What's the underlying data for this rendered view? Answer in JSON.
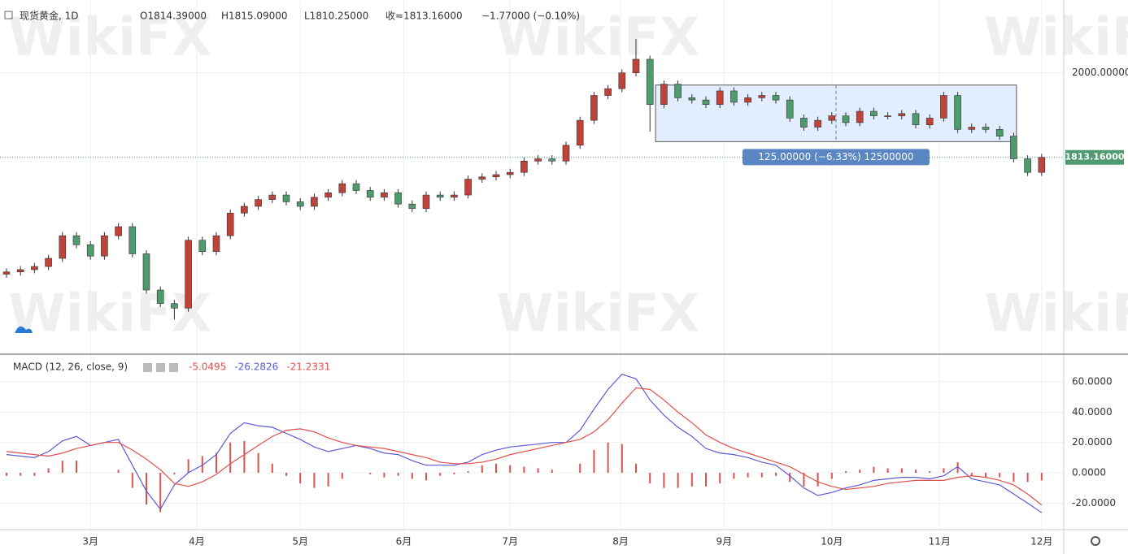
{
  "header": {
    "symbol": "现货黄金, 1D",
    "open": "O1814.39000",
    "high": "H1815.09000",
    "low": "L1810.25000",
    "close": "收=1813.16000",
    "change": "−1.77000 (−0.10%)"
  },
  "watermark": "WikiFX",
  "chart_data": [
    {
      "type": "candlestick",
      "up_color": "#c0433b",
      "down_color": "#4f9a6e",
      "open": [
        1555,
        1560,
        1565,
        1572,
        1590,
        1640,
        1620,
        1595,
        1640,
        1660,
        1600,
        1520,
        1490,
        1480,
        1630,
        1605,
        1640,
        1690,
        1705,
        1720,
        1730,
        1715,
        1705,
        1725,
        1735,
        1755,
        1740,
        1725,
        1735,
        1710,
        1700,
        1730,
        1725,
        1730,
        1765,
        1770,
        1775,
        1780,
        1805,
        1810,
        1805,
        1840,
        1895,
        1950,
        1965,
        2000,
        2030,
        1930,
        1975,
        1945,
        1940,
        1930,
        1960,
        1935,
        1945,
        1950,
        1940,
        1900,
        1880,
        1895,
        1905,
        1890,
        1915,
        1905,
        1905,
        1910,
        1885,
        1900,
        1950,
        1875,
        1880,
        1875,
        1860,
        1810,
        1780
      ],
      "high": [
        1568,
        1573,
        1580,
        1598,
        1648,
        1648,
        1628,
        1648,
        1668,
        1668,
        1608,
        1528,
        1498,
        1638,
        1638,
        1648,
        1698,
        1713,
        1728,
        1738,
        1738,
        1723,
        1733,
        1743,
        1763,
        1763,
        1748,
        1743,
        1743,
        1718,
        1738,
        1738,
        1738,
        1773,
        1778,
        1783,
        1788,
        1813,
        1818,
        1818,
        1848,
        1903,
        1958,
        1973,
        2008,
        2075,
        2038,
        1983,
        1983,
        1953,
        1948,
        1968,
        1968,
        1953,
        1958,
        1958,
        1948,
        1908,
        1903,
        1913,
        1913,
        1923,
        1923,
        1913,
        1918,
        1918,
        1908,
        1958,
        1958,
        1888,
        1888,
        1883,
        1868,
        1818,
        1821
      ],
      "low": [
        1547,
        1552,
        1557,
        1564,
        1582,
        1612,
        1587,
        1587,
        1632,
        1592,
        1512,
        1482,
        1455,
        1472,
        1597,
        1597,
        1632,
        1682,
        1697,
        1712,
        1707,
        1697,
        1697,
        1717,
        1727,
        1732,
        1717,
        1717,
        1702,
        1692,
        1692,
        1717,
        1717,
        1722,
        1757,
        1762,
        1767,
        1772,
        1797,
        1797,
        1797,
        1832,
        1887,
        1942,
        1957,
        1992,
        1870,
        1922,
        1937,
        1932,
        1922,
        1922,
        1927,
        1927,
        1937,
        1932,
        1892,
        1872,
        1872,
        1887,
        1882,
        1882,
        1897,
        1897,
        1897,
        1877,
        1877,
        1892,
        1867,
        1867,
        1867,
        1852,
        1802,
        1772,
        1772
      ],
      "close": [
        1560,
        1565,
        1572,
        1590,
        1640,
        1620,
        1595,
        1640,
        1660,
        1600,
        1520,
        1490,
        1480,
        1630,
        1605,
        1640,
        1690,
        1705,
        1720,
        1730,
        1715,
        1705,
        1725,
        1735,
        1755,
        1740,
        1725,
        1735,
        1710,
        1700,
        1730,
        1725,
        1730,
        1765,
        1770,
        1775,
        1780,
        1805,
        1810,
        1805,
        1840,
        1895,
        1950,
        1965,
        2000,
        2030,
        1930,
        1975,
        1945,
        1940,
        1930,
        1960,
        1935,
        1945,
        1950,
        1940,
        1900,
        1880,
        1895,
        1905,
        1890,
        1915,
        1905,
        1905,
        1910,
        1885,
        1900,
        1950,
        1875,
        1880,
        1875,
        1860,
        1810,
        1780,
        1813.16
      ],
      "ylim": [
        1380,
        2161
      ],
      "yticks": [
        {
          "value": 2000,
          "label": "2000.00000"
        }
      ],
      "last_price": {
        "value": 1813.16,
        "label": "1813.16000",
        "color": "#4f9a6e"
      },
      "xlim": [
        -0.5,
        76.5
      ],
      "xticks": [
        {
          "value": 6,
          "label": "3月"
        },
        {
          "value": 13.6,
          "label": "4月"
        },
        {
          "value": 21,
          "label": "5月"
        },
        {
          "value": 28.4,
          "label": "6月"
        },
        {
          "value": 36,
          "label": "7月"
        },
        {
          "value": 43.9,
          "label": "8月"
        },
        {
          "value": 51.3,
          "label": "9月"
        },
        {
          "value": 59,
          "label": "10月"
        },
        {
          "value": 66.7,
          "label": "11月"
        },
        {
          "value": 74,
          "label": "12月"
        }
      ],
      "box": {
        "x": [
          46.4,
          72.2
        ],
        "y": [
          1973,
          1848
        ],
        "label": "125.00000 (−6.33%) 12500000"
      }
    },
    {
      "type": "macd",
      "title": "MACD (12, 26, close, 9)",
      "series": [
        {
          "name": "-5.0495",
          "kind": "histogram",
          "color": "#d9534f",
          "values": [
            -2,
            -2,
            -2,
            3,
            8,
            8,
            0,
            0,
            2,
            -10,
            -21,
            -26,
            -1,
            9,
            11,
            13,
            20,
            21,
            13,
            6,
            -2,
            -7,
            -10,
            -9,
            -4,
            0,
            -1,
            -3,
            -2,
            -4,
            -5,
            -2,
            -1,
            1,
            5,
            6,
            5,
            4,
            3,
            2,
            0,
            6,
            15,
            20,
            19,
            6,
            -7,
            -10,
            -10,
            -9,
            -9,
            -7,
            -4,
            -3,
            -3,
            -2,
            -6,
            -9,
            -9,
            -4,
            1,
            2,
            4,
            3,
            3,
            2,
            1,
            3,
            7,
            -2,
            -3,
            -3,
            -6,
            -6,
            -5.0495
          ]
        },
        {
          "name": "-26.2826",
          "kind": "line",
          "color": "#5b5bd6",
          "values": [
            12,
            11,
            10,
            14,
            21,
            24,
            18,
            20,
            22,
            5,
            -12,
            -24,
            -8,
            0,
            5,
            12,
            26,
            33,
            31,
            30,
            26,
            22,
            17,
            14,
            16,
            18,
            16,
            13,
            12,
            8,
            5,
            5,
            5,
            7,
            12,
            15,
            17,
            18,
            19,
            20,
            20,
            28,
            42,
            55,
            65,
            62,
            48,
            38,
            30,
            24,
            16,
            13,
            12,
            10,
            7,
            5,
            -2,
            -10,
            -15,
            -13,
            -10,
            -8,
            -5,
            -4,
            -3,
            -3,
            -4,
            -2,
            4,
            -4,
            -6,
            -8,
            -14,
            -20,
            -26.2826
          ]
        },
        {
          "name": "-21.2331",
          "kind": "line",
          "color": "#e0504a",
          "values": [
            14,
            13,
            12,
            11,
            13,
            16,
            18,
            20,
            20,
            15,
            9,
            2,
            -7,
            -9,
            -6,
            -1,
            6,
            12,
            18,
            24,
            28,
            29,
            27,
            23,
            20,
            18,
            17,
            16,
            14,
            12,
            10,
            7,
            6,
            6,
            7,
            9,
            12,
            14,
            16,
            18,
            20,
            22,
            27,
            35,
            46,
            56,
            55,
            48,
            40,
            33,
            25,
            20,
            16,
            13,
            10,
            7,
            4,
            -1,
            -6,
            -9,
            -11,
            -10,
            -9,
            -7,
            -6,
            -5,
            -5,
            -5,
            -3,
            -2,
            -3,
            -5,
            -8,
            -14,
            -21.2331
          ]
        }
      ],
      "ylim": [
        -37.5,
        77.7
      ],
      "yticks": [
        {
          "value": 60,
          "label": "60.0000"
        },
        {
          "value": 40,
          "label": "40.0000"
        },
        {
          "value": 20,
          "label": "20.0000"
        },
        {
          "value": 0,
          "label": "0.0000"
        },
        {
          "value": -20,
          "label": "-20.0000"
        }
      ]
    }
  ]
}
